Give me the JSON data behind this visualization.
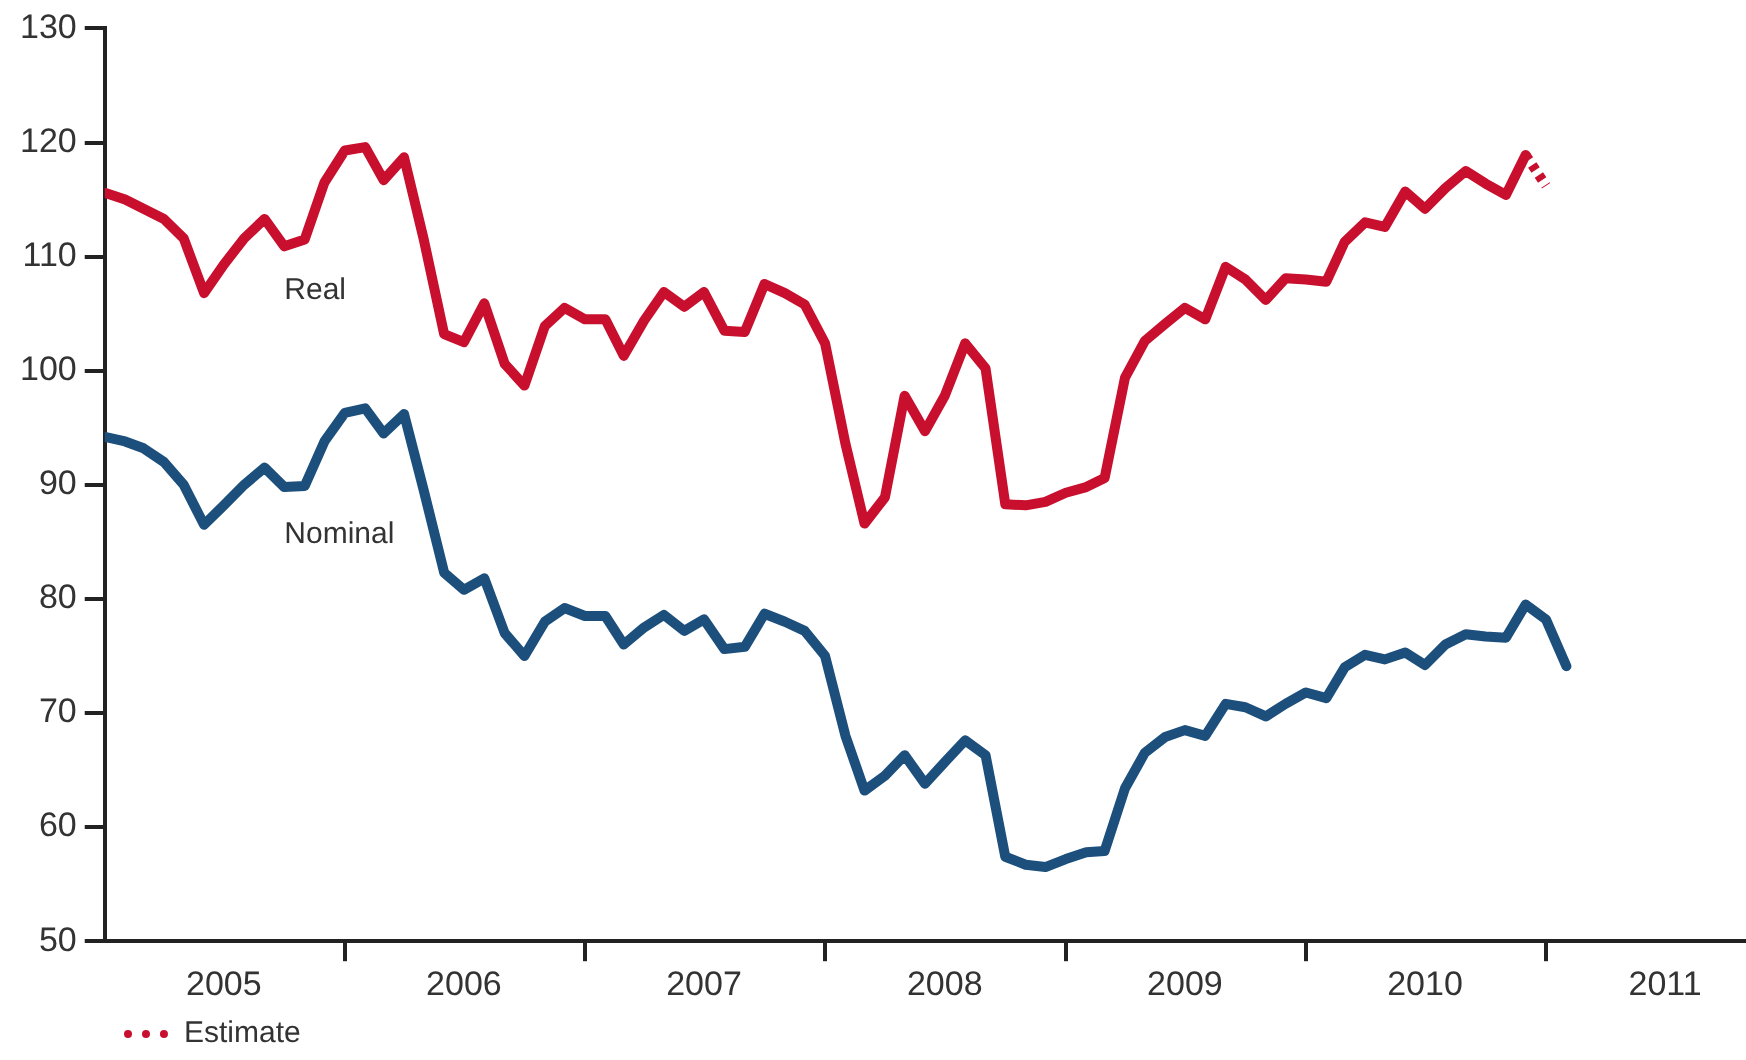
{
  "chart_data": {
    "type": "line",
    "x": [
      "2005-01",
      "2005-02",
      "2005-03",
      "2005-04",
      "2005-05",
      "2005-06",
      "2005-07",
      "2005-08",
      "2005-09",
      "2005-10",
      "2005-11",
      "2005-12",
      "2006-01",
      "2006-02",
      "2006-03",
      "2006-04",
      "2006-05",
      "2006-06",
      "2006-07",
      "2006-08",
      "2006-09",
      "2006-10",
      "2006-11",
      "2006-12",
      "2007-01",
      "2007-02",
      "2007-03",
      "2007-04",
      "2007-05",
      "2007-06",
      "2007-07",
      "2007-08",
      "2007-09",
      "2007-10",
      "2007-11",
      "2007-12",
      "2008-01",
      "2008-02",
      "2008-03",
      "2008-04",
      "2008-05",
      "2008-06",
      "2008-07",
      "2008-08",
      "2008-09",
      "2008-10",
      "2008-11",
      "2008-12",
      "2009-01",
      "2009-02",
      "2009-03",
      "2009-04",
      "2009-05",
      "2009-06",
      "2009-07",
      "2009-08",
      "2009-09",
      "2009-10",
      "2009-11",
      "2009-12",
      "2010-01",
      "2010-02",
      "2010-03",
      "2010-04",
      "2010-05",
      "2010-06",
      "2010-07",
      "2010-08",
      "2010-09",
      "2010-10",
      "2010-11",
      "2010-12",
      "2011-01",
      "2011-02"
    ],
    "series": [
      {
        "name": "Real",
        "color": "#c8102e",
        "values": [
          115.6,
          115.0,
          114.2,
          113.3,
          111.6,
          106.8,
          109.3,
          111.6,
          113.3,
          110.9,
          111.5,
          116.5,
          119.3,
          119.6,
          116.7,
          118.7,
          111.5,
          103.2,
          102.5,
          105.9,
          100.6,
          98.7,
          103.9,
          105.5,
          104.5,
          104.5,
          101.3,
          104.4,
          106.9,
          105.6,
          106.9,
          103.5,
          103.4,
          107.6,
          106.8,
          105.8,
          102.4,
          93.6,
          86.6,
          88.9,
          97.8,
          94.7,
          97.8,
          102.4,
          100.2,
          88.3,
          88.2,
          88.5,
          89.3,
          89.8,
          90.6,
          99.4,
          102.6,
          104.1,
          105.5,
          104.5,
          109.1,
          108.0,
          106.2,
          108.1,
          108.0,
          107.8,
          111.3,
          113.0,
          112.6,
          115.7,
          114.2,
          116.0,
          117.5,
          116.4,
          115.4,
          118.9,
          null,
          null
        ]
      },
      {
        "name": "Nominal",
        "color": "#1d4f7c",
        "values": [
          94.2,
          93.8,
          93.2,
          92.0,
          90.0,
          86.5,
          88.2,
          90.0,
          91.5,
          89.8,
          89.9,
          93.8,
          96.3,
          96.7,
          94.5,
          96.2,
          89.5,
          82.3,
          80.8,
          81.8,
          77.0,
          75.0,
          78.0,
          79.2,
          78.5,
          78.5,
          76.0,
          77.5,
          78.6,
          77.2,
          78.2,
          75.6,
          75.8,
          78.7,
          78.0,
          77.2,
          75.0,
          68.0,
          63.2,
          64.5,
          66.3,
          63.8,
          65.7,
          67.6,
          66.3,
          57.4,
          56.7,
          56.5,
          57.2,
          57.8,
          57.9,
          63.4,
          66.5,
          67.9,
          68.5,
          68.0,
          70.8,
          70.5,
          69.7,
          70.8,
          71.8,
          71.3,
          74.0,
          75.1,
          74.7,
          75.3,
          74.2,
          76.0,
          76.9,
          76.7,
          76.6,
          79.5,
          78.2,
          74.1
        ]
      },
      {
        "name": "Estimate",
        "color": "#c8102e",
        "line_style": "dotted",
        "x": [
          "2010-12",
          "2011-01"
        ],
        "values": [
          118.9,
          116.2
        ]
      }
    ],
    "xlim": [
      "2005-01",
      "2011-11"
    ],
    "xticks": [
      {
        "value": "2005-07",
        "label": "2005"
      },
      {
        "value": "2006-01",
        "label": null
      },
      {
        "value": "2006-07",
        "label": "2006"
      },
      {
        "value": "2007-01",
        "label": null
      },
      {
        "value": "2007-07",
        "label": "2007"
      },
      {
        "value": "2008-01",
        "label": null
      },
      {
        "value": "2008-07",
        "label": "2008"
      },
      {
        "value": "2009-01",
        "label": null
      },
      {
        "value": "2009-07",
        "label": "2009"
      },
      {
        "value": "2010-01",
        "label": null
      },
      {
        "value": "2010-07",
        "label": "2010"
      },
      {
        "value": "2011-01",
        "label": null
      },
      {
        "value": "2011-07",
        "label": "2011"
      }
    ],
    "ylim": [
      50,
      130
    ],
    "yticks": [
      50,
      60,
      70,
      80,
      90,
      100,
      110,
      120,
      130
    ],
    "grid": false,
    "legend": "bottom left",
    "line_style": "solid",
    "marker": "none"
  }
}
